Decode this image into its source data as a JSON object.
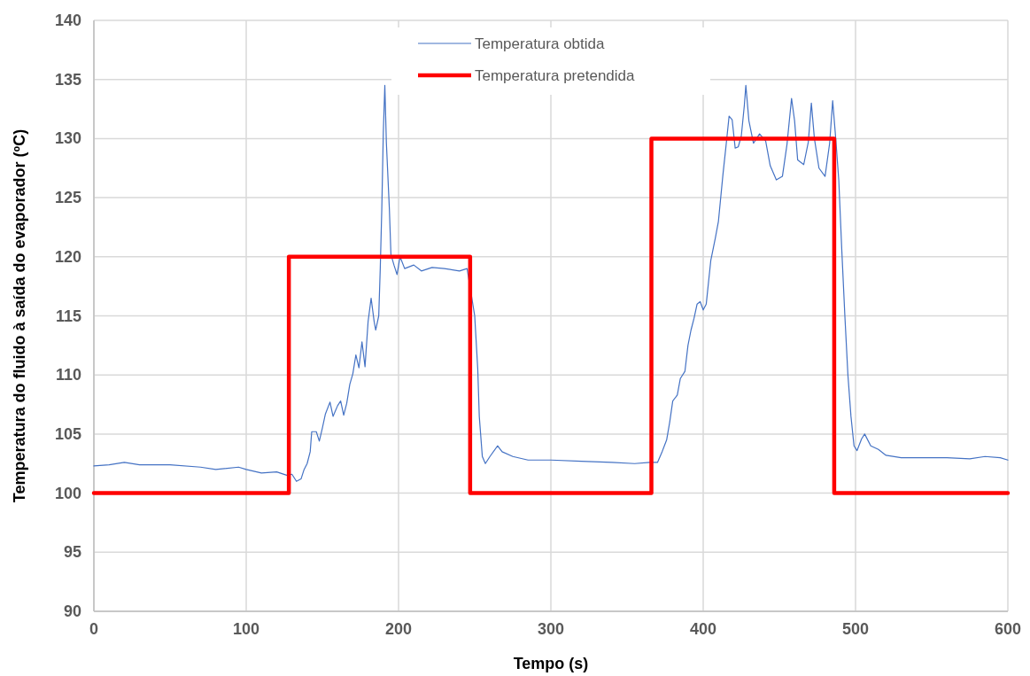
{
  "chart_data": {
    "type": "line",
    "xlabel": "Tempo (s)",
    "ylabel": "Temperatura do fluido à saída do evaporador (ºC)",
    "xlim": [
      0,
      600
    ],
    "xticks": [
      0,
      100,
      200,
      300,
      400,
      500,
      600
    ],
    "ylim": [
      90,
      140
    ],
    "yticks": [
      90,
      95,
      100,
      105,
      110,
      115,
      120,
      125,
      130,
      135,
      140
    ],
    "grid": true,
    "legend": "top",
    "marker": "none",
    "line_style": "solid",
    "series": [
      {
        "name": "Temperatura obtida",
        "type": "line",
        "color": "#4472c4",
        "x": [
          0,
          10,
          20,
          30,
          50,
          70,
          80,
          95,
          100,
          110,
          120,
          127,
          130,
          133,
          136,
          138,
          140,
          142,
          143,
          146,
          148,
          150,
          152,
          155,
          157,
          160,
          162,
          164,
          166,
          168,
          170,
          172,
          174,
          176,
          178,
          180,
          182,
          184,
          185,
          187,
          188,
          189,
          190,
          191,
          192,
          194,
          195,
          197,
          199,
          201,
          204,
          210,
          215,
          222,
          230,
          240,
          245,
          250,
          252,
          253,
          255,
          257,
          260,
          265,
          268,
          275,
          285,
          300,
          320,
          340,
          355,
          365,
          370,
          373,
          376,
          378,
          380,
          383,
          385,
          388,
          390,
          392,
          394,
          396,
          398,
          400,
          402,
          405,
          408,
          410,
          413,
          415,
          417,
          419,
          421,
          423,
          425,
          427,
          428,
          430,
          433,
          437,
          441,
          444,
          448,
          452,
          455,
          458,
          460,
          462,
          466,
          469,
          471,
          473,
          476,
          480,
          483,
          485,
          487,
          489,
          491,
          493,
          495,
          497,
          499,
          501,
          504,
          506,
          510,
          515,
          520,
          530,
          545,
          560,
          575,
          585,
          595,
          600
        ],
        "values": [
          102.3,
          102.4,
          102.6,
          102.4,
          102.4,
          102.2,
          102.0,
          102.2,
          102.0,
          101.7,
          101.8,
          101.5,
          101.6,
          101.0,
          101.2,
          102.0,
          102.5,
          103.5,
          105.2,
          105.2,
          104.4,
          105.5,
          106.7,
          107.7,
          106.5,
          107.4,
          107.8,
          106.6,
          107.6,
          109.2,
          110.1,
          111.7,
          110.6,
          112.8,
          110.7,
          114.5,
          116.5,
          114.5,
          113.8,
          115.0,
          119.0,
          124.0,
          130.5,
          134.5,
          129.7,
          124.0,
          120.2,
          119.3,
          118.5,
          120.0,
          119.0,
          119.3,
          118.8,
          119.1,
          119.0,
          118.8,
          119.0,
          115.0,
          110.5,
          106.5,
          103.1,
          102.5,
          103.1,
          104.0,
          103.5,
          103.1,
          102.8,
          102.8,
          102.7,
          102.6,
          102.5,
          102.6,
          102.6,
          103.5,
          104.5,
          106.0,
          107.8,
          108.3,
          109.7,
          110.3,
          112.5,
          113.8,
          114.8,
          116.0,
          116.2,
          115.5,
          116.0,
          119.7,
          121.6,
          123.0,
          127.0,
          129.4,
          131.9,
          131.6,
          129.2,
          129.3,
          130.2,
          132.8,
          134.5,
          131.5,
          129.6,
          130.4,
          129.8,
          127.7,
          126.5,
          126.8,
          129.5,
          133.4,
          131.5,
          128.2,
          127.8,
          129.7,
          133.0,
          130.0,
          127.5,
          126.8,
          129.6,
          133.2,
          130.0,
          126.5,
          120.5,
          115.0,
          110.0,
          106.5,
          104.0,
          103.6,
          104.6,
          105.0,
          104.0,
          103.7,
          103.2,
          103.0,
          103.0,
          103.0,
          102.9,
          103.1,
          103.0,
          102.8
        ]
      },
      {
        "name": "Temperatura pretendida",
        "type": "step",
        "color": "#ff0000",
        "x": [
          0,
          128,
          247,
          366,
          486,
          600
        ],
        "values": [
          100,
          120,
          100,
          130,
          100,
          100
        ]
      }
    ]
  }
}
